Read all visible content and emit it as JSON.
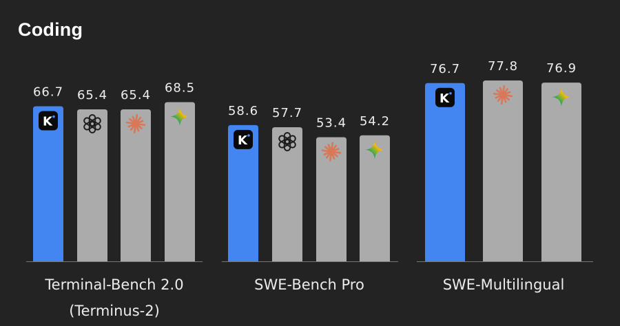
{
  "chart_data": {
    "type": "bar",
    "title": "Coding",
    "ylabel": "",
    "xlabel": "",
    "ylim": [
      0,
      100
    ],
    "groups": [
      {
        "label_lines": [
          "Terminal-Bench 2.0",
          "(Terminus-2)"
        ],
        "bars": [
          {
            "model": "kimi",
            "value": 66.7,
            "label": "66.7",
            "color": "#4486f1"
          },
          {
            "model": "openai",
            "value": 65.4,
            "label": "65.4",
            "color": "#ababab"
          },
          {
            "model": "claude",
            "value": 65.4,
            "label": "65.4",
            "color": "#ababab"
          },
          {
            "model": "gemini",
            "value": 68.5,
            "label": "68.5",
            "color": "#ababab"
          }
        ]
      },
      {
        "label_lines": [
          "SWE-Bench Pro"
        ],
        "bars": [
          {
            "model": "kimi",
            "value": 58.6,
            "label": "58.6",
            "color": "#4486f1"
          },
          {
            "model": "openai",
            "value": 57.7,
            "label": "57.7",
            "color": "#ababab"
          },
          {
            "model": "claude",
            "value": 53.4,
            "label": "53.4",
            "color": "#ababab"
          },
          {
            "model": "gemini",
            "value": 54.2,
            "label": "54.2",
            "color": "#ababab"
          }
        ]
      },
      {
        "label_lines": [
          "SWE-Multilingual"
        ],
        "bars": [
          {
            "model": "kimi",
            "value": 76.7,
            "label": "76.7",
            "color": "#4486f1"
          },
          {
            "model": "claude",
            "value": 77.8,
            "label": "77.8",
            "color": "#ababab"
          },
          {
            "model": "gemini",
            "value": 76.9,
            "label": "76.9",
            "color": "#ababab"
          }
        ]
      }
    ]
  },
  "icons": {
    "kimi": "kimi-logo-icon",
    "openai": "openai-logo-icon",
    "claude": "claude-logo-icon",
    "gemini": "gemini-logo-icon"
  },
  "colors": {
    "background": "#232323",
    "highlight": "#4486f1",
    "bar": "#ababab",
    "axis": "#777777"
  }
}
